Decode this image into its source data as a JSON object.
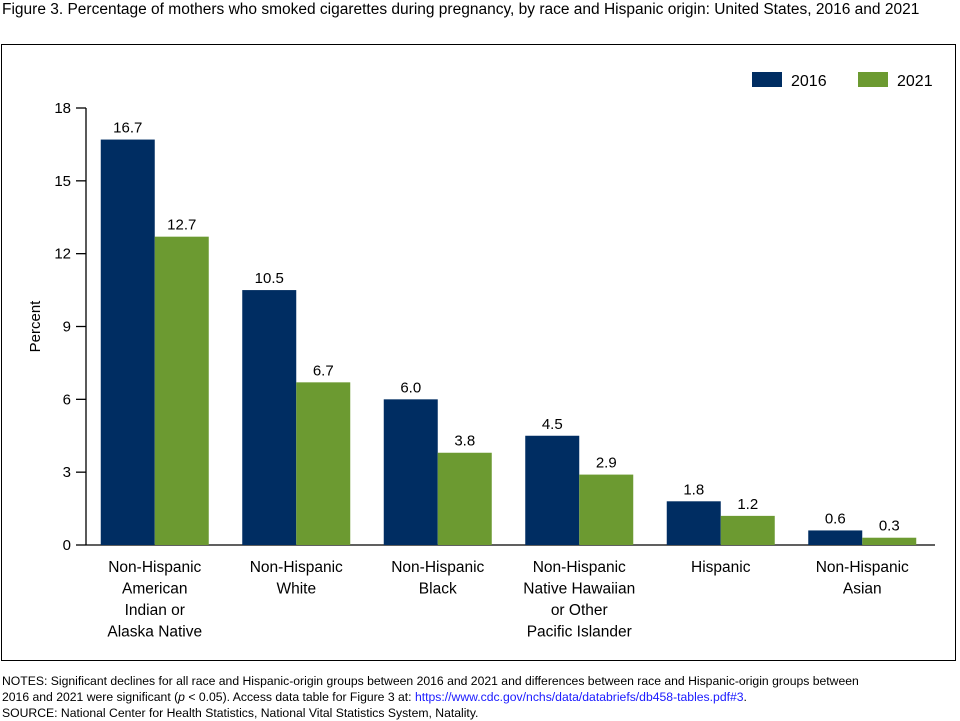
{
  "title": "Figure 3. Percentage of mothers who smoked cigarettes during pregnancy, by race and Hispanic origin: United States, 2016 and 2021",
  "chart_data": {
    "type": "bar",
    "ylabel": "Percent",
    "xlabel": "",
    "ylim": [
      0,
      18
    ],
    "yticks": [
      "0",
      "3",
      "6",
      "9",
      "12",
      "15",
      "18"
    ],
    "ytick_values": [
      0,
      3,
      6,
      9,
      12,
      15,
      18
    ],
    "legend_position": "top-right",
    "categories": [
      [
        "Non-Hispanic",
        "American",
        "Indian or",
        "Alaska Native"
      ],
      [
        "Non-Hispanic",
        "White"
      ],
      [
        "Non-Hispanic",
        "Black"
      ],
      [
        "Non-Hispanic",
        "Native Hawaiian",
        "or Other",
        "Pacific Islander"
      ],
      [
        "Hispanic"
      ],
      [
        "Non-Hispanic",
        "Asian"
      ]
    ],
    "series": [
      {
        "name": "2016",
        "color": "#002d62",
        "values": [
          16.7,
          10.5,
          6.0,
          4.5,
          1.8,
          0.6
        ],
        "labels": [
          "16.7",
          "10.5",
          "6.0",
          "4.5",
          "1.8",
          "0.6"
        ]
      },
      {
        "name": "2021",
        "color": "#6c9a31",
        "values": [
          12.7,
          6.7,
          3.8,
          2.9,
          1.2,
          0.3
        ],
        "labels": [
          "12.7",
          "6.7",
          "3.8",
          "2.9",
          "1.2",
          "0.3"
        ]
      }
    ],
    "grid": false
  },
  "notes": {
    "line1": "NOTES: Significant declines for all race and Hispanic-origin groups between 2016 and 2021 and differences between race and Hispanic-origin groups between",
    "line2_prefix": "2016 and 2021 were significant (",
    "line2_p": "p",
    "line2_middle": " < 0.05). Access data table for Figure 3 at: ",
    "link": "https://www.cdc.gov/nchs/data/databriefs/db458-tables.pdf#3",
    "line2_suffix": ".",
    "source": "SOURCE: National Center for Health Statistics, National Vital Statistics System, Natality."
  }
}
